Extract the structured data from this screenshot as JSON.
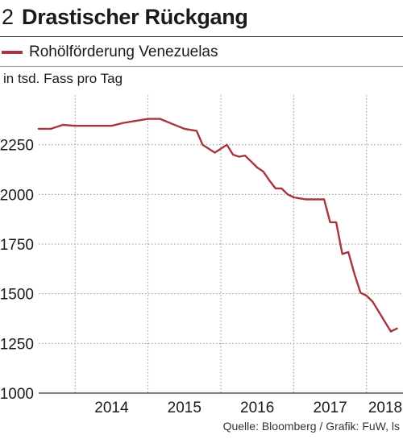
{
  "header": {
    "number": "2",
    "title": "Drastischer Rückgang"
  },
  "source": "Quelle: Bloomberg / Grafik: FuW, ls",
  "colors": {
    "line": "#a8343d",
    "grid": "#999999",
    "axis": "#333333"
  },
  "chart_data": {
    "type": "line",
    "title": "Drastischer Rückgang",
    "unit_label": "in tsd. Fass pro Tag",
    "ylim": [
      1000,
      2500
    ],
    "y_ticks": [
      1000,
      1250,
      1500,
      1750,
      2000,
      2250
    ],
    "x_range": [
      "2013-07-01",
      "2018-07-01"
    ],
    "x_ticks": [
      "2014",
      "2015",
      "2016",
      "2017",
      "2018"
    ],
    "grid": true,
    "legend_position": "top-left",
    "series": [
      {
        "name": "Rohölförderung Venezuelas",
        "x": [
          "2013-07",
          "2013-09",
          "2013-11",
          "2014-01",
          "2014-03",
          "2014-05",
          "2014-07",
          "2014-09",
          "2014-11",
          "2015-01",
          "2015-03",
          "2015-05",
          "2015-07",
          "2015-09",
          "2015-10",
          "2015-12",
          "2016-02",
          "2016-03",
          "2016-04",
          "2016-05",
          "2016-07",
          "2016-08",
          "2016-09",
          "2016-10",
          "2016-11",
          "2016-12",
          "2017-01",
          "2017-02",
          "2017-03",
          "2017-04",
          "2017-05",
          "2017-06",
          "2017-07",
          "2017-08",
          "2017-09",
          "2017-10",
          "2017-11",
          "2017-12",
          "2018-01",
          "2018-02",
          "2018-03",
          "2018-04",
          "2018-05",
          "2018-06"
        ],
        "values": [
          2330,
          2330,
          2350,
          2345,
          2345,
          2345,
          2345,
          2360,
          2370,
          2380,
          2380,
          2355,
          2330,
          2320,
          2250,
          2210,
          2250,
          2200,
          2190,
          2195,
          2135,
          2115,
          2070,
          2030,
          2030,
          2000,
          1985,
          1980,
          1975,
          1975,
          1975,
          1975,
          1860,
          1860,
          1700,
          1710,
          1600,
          1505,
          1490,
          1460,
          1410,
          1360,
          1310,
          1325
        ]
      }
    ]
  }
}
